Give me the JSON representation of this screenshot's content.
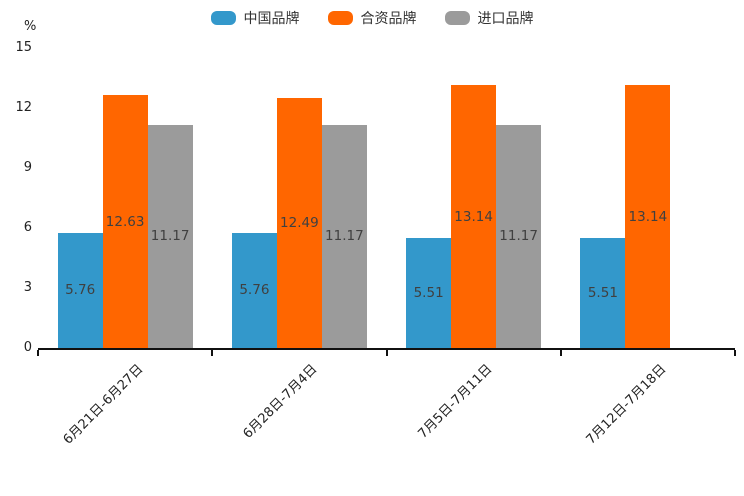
{
  "chart_data": {
    "type": "bar",
    "title": "",
    "ylabel": "%",
    "xlabel": "",
    "grid": false,
    "legend_position": "top",
    "ylim": [
      0,
      15
    ],
    "yticks": [
      0,
      3,
      6,
      9,
      12,
      15
    ],
    "categories": [
      "6月21日-6月27日",
      "6月28日-7月4日",
      "7月5日-7月11日",
      "7月12日-7月18日"
    ],
    "series": [
      {
        "name": "中国品牌",
        "color": "#3398cb",
        "values": [
          5.76,
          5.76,
          5.51,
          5.51
        ]
      },
      {
        "name": "合资品牌",
        "color": "#ff6600",
        "values": [
          12.63,
          12.49,
          13.14,
          13.14
        ]
      },
      {
        "name": "进口品牌",
        "color": "#9b9b9b",
        "values": [
          11.17,
          11.17,
          11.17,
          null
        ]
      }
    ],
    "value_label_color": "#404040",
    "axis_color": "#111111"
  }
}
